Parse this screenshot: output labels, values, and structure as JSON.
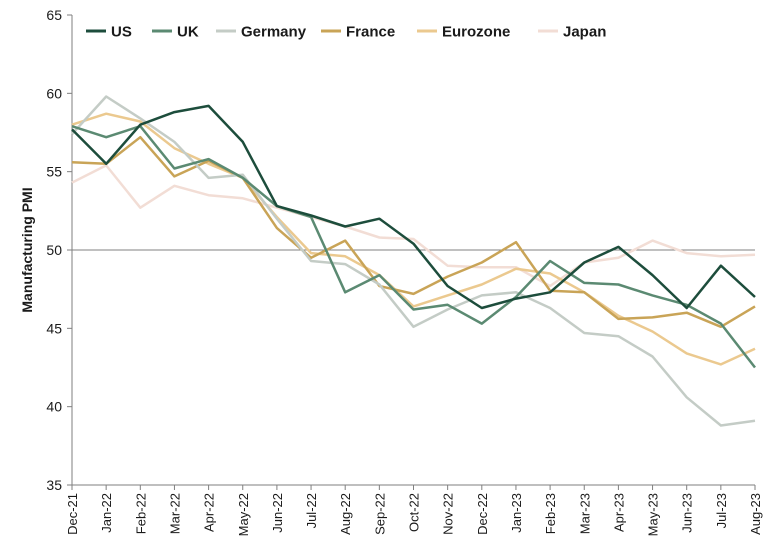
{
  "chart_data": {
    "type": "line",
    "title": "",
    "xlabel": "",
    "ylabel": "Manufacturing PMI",
    "ylim": [
      35,
      65
    ],
    "yticks": [
      35,
      40,
      45,
      50,
      55,
      60,
      65
    ],
    "reference_line": 50,
    "grid": false,
    "legend_position": "top",
    "categories": [
      "Dec-21",
      "Jan-22",
      "Feb-22",
      "Mar-22",
      "Apr-22",
      "May-22",
      "Jun-22",
      "Jul-22",
      "Aug-22",
      "Sep-22",
      "Oct-22",
      "Nov-22",
      "Dec-22",
      "Jan-23",
      "Feb-23",
      "Mar-23",
      "Apr-23",
      "May-23",
      "Jun-23",
      "Jul-23",
      "Aug-23"
    ],
    "series": [
      {
        "name": "US",
        "color": "#1d4d3c",
        "values": [
          57.7,
          55.5,
          58.0,
          58.8,
          59.2,
          56.9,
          52.8,
          52.2,
          51.5,
          52.0,
          50.4,
          47.7,
          46.3,
          46.9,
          47.3,
          49.2,
          50.2,
          48.4,
          46.3,
          49.0,
          47.0
        ]
      },
      {
        "name": "UK",
        "color": "#5b8a72",
        "values": [
          57.9,
          57.2,
          57.9,
          55.2,
          55.8,
          54.6,
          52.8,
          52.1,
          47.3,
          48.4,
          46.2,
          46.5,
          45.3,
          47.0,
          49.3,
          47.9,
          47.8,
          47.1,
          46.5,
          45.3,
          42.5
        ]
      },
      {
        "name": "Germany",
        "color": "#c4ccc6",
        "values": [
          57.4,
          59.8,
          58.4,
          56.9,
          54.6,
          54.8,
          52.0,
          49.3,
          49.1,
          47.8,
          45.1,
          46.2,
          47.1,
          47.3,
          46.3,
          44.7,
          44.5,
          43.2,
          40.6,
          38.8,
          39.1
        ]
      },
      {
        "name": "France",
        "color": "#c9a457",
        "values": [
          55.6,
          55.5,
          57.2,
          54.7,
          55.7,
          54.6,
          51.4,
          49.5,
          50.6,
          47.7,
          47.2,
          48.3,
          49.2,
          50.5,
          47.4,
          47.3,
          45.6,
          45.7,
          46.0,
          45.1,
          46.4
        ]
      },
      {
        "name": "Eurozone",
        "color": "#ebc98f",
        "values": [
          58.0,
          58.7,
          58.2,
          56.5,
          55.5,
          54.6,
          52.1,
          49.8,
          49.6,
          48.4,
          46.4,
          47.1,
          47.8,
          48.8,
          48.5,
          47.3,
          45.8,
          44.8,
          43.4,
          42.7,
          43.7
        ]
      },
      {
        "name": "Japan",
        "color": "#f2ddd5",
        "values": [
          54.3,
          55.4,
          52.7,
          54.1,
          53.5,
          53.3,
          52.7,
          52.1,
          51.5,
          50.8,
          50.7,
          49.0,
          48.9,
          48.9,
          47.7,
          49.2,
          49.5,
          50.6,
          49.8,
          49.6,
          49.7
        ]
      }
    ]
  }
}
